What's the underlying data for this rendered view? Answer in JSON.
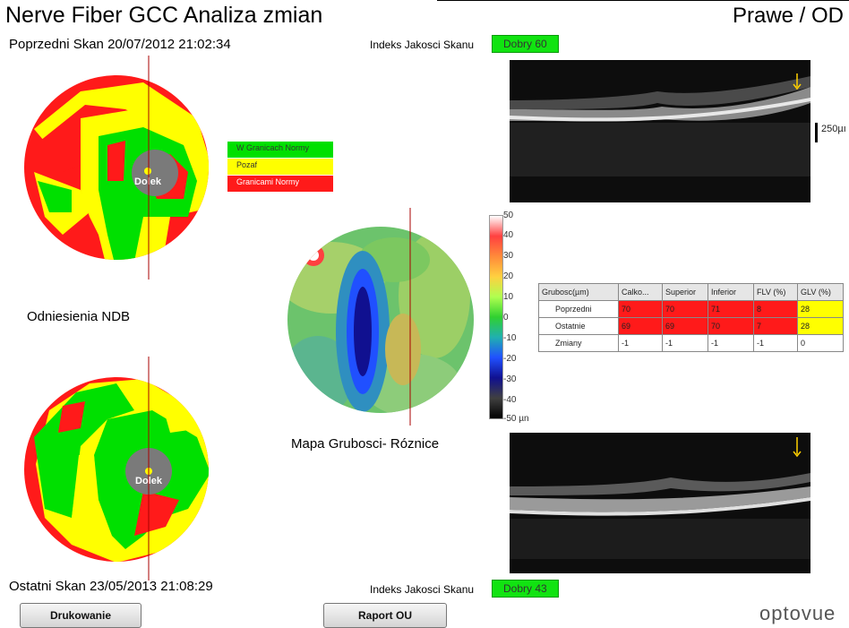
{
  "header": {
    "title": "Nerve Fiber GCC Analiza zmian",
    "eye": "Prawe / OD"
  },
  "previous_scan": {
    "label": "Poprzedni Skan 20/07/2012 21:02:34",
    "quality_label": "Indeks Jakosci Skanu",
    "quality_value": "Dobry  60"
  },
  "last_scan": {
    "label": "Ostatni Skan 23/05/2013 21:08:29",
    "quality_label": "Indeks Jakosci Skanu",
    "quality_value": "Dobry  43"
  },
  "fovea_label": "Dolek",
  "reference_label": "Odniesienia NDB",
  "legend": {
    "items": [
      {
        "label": "W Granicach Normy",
        "color": "#00e000"
      },
      {
        "label": "Pozaf",
        "color": "#ffff00"
      },
      {
        "label": "Granicami Normy",
        "color": "#ff0000"
      }
    ]
  },
  "difference_map": {
    "title": "Mapa Grubosci- Róznice"
  },
  "colorbar": {
    "ticks": [
      "50",
      "40",
      "30",
      "20",
      "10",
      "0",
      "-10",
      "-20",
      "-30",
      "-40",
      "-50 µn"
    ],
    "colors": [
      "#ffffff",
      "#ff4040",
      "#ff8a3a",
      "#ffd040",
      "#b0ff50",
      "#30d030",
      "#20b0b0",
      "#2050ff",
      "#101090",
      "#404040",
      "#000000"
    ]
  },
  "oct": {
    "scale_label": "250µı"
  },
  "table": {
    "headers": [
      "Grubosc(µm)",
      "Calko...",
      "Superior",
      "Inferior",
      "FLV (%)",
      "GLV (%)"
    ],
    "rows": [
      {
        "cells": [
          "Poprzedni",
          "70",
          "70",
          "71",
          "8",
          "28"
        ],
        "colors": [
          "#fff",
          "#ff1a1a",
          "#ff1a1a",
          "#ff1a1a",
          "#ff1a1a",
          "#ffff00"
        ]
      },
      {
        "cells": [
          "Ostatnie",
          "69",
          "69",
          "70",
          "7",
          "28"
        ],
        "colors": [
          "#fff",
          "#ff1a1a",
          "#ff1a1a",
          "#ff1a1a",
          "#ff1a1a",
          "#ffff00"
        ]
      },
      {
        "cells": [
          "Zmiany",
          "-1",
          "-1",
          "-1",
          "-1",
          "0"
        ],
        "colors": [
          "#fff",
          "#fff",
          "#fff",
          "#fff",
          "#fff",
          "#fff"
        ]
      }
    ]
  },
  "buttons": {
    "print": "Drukowanie",
    "report": "Raport OU"
  },
  "logo": "optovue"
}
